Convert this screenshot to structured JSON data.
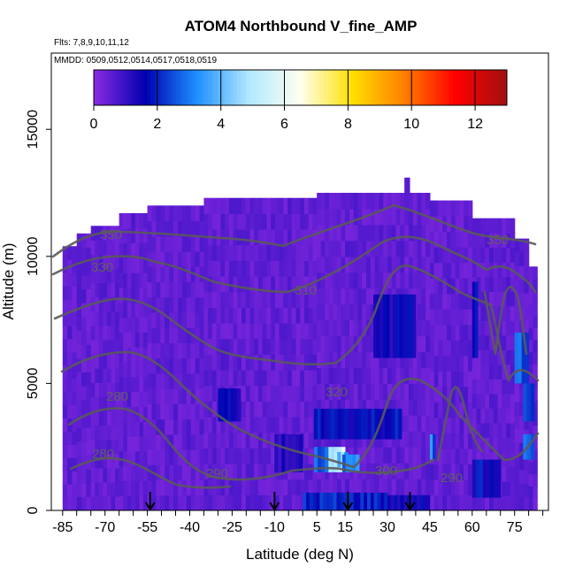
{
  "chart_data": {
    "type": "heatmap",
    "title": "ATOM4 Northbound V_fine_AMP",
    "flights_note": "Flts: 7,8,9,10,11,12",
    "dates_note": "MMDD: 0509,0512,0514,0517,0518,0519",
    "xlabel": "Latitude (deg N)",
    "ylabel": "Altitude (m)",
    "xlim": [
      -85,
      85
    ],
    "ylim": [
      0,
      18000
    ],
    "x_ticks": [
      -85,
      -70,
      -55,
      -40,
      -25,
      -10,
      5,
      15,
      30,
      45,
      60,
      75
    ],
    "y_ticks": [
      0,
      5000,
      10000,
      15000
    ],
    "colorbar": {
      "range": [
        0,
        13
      ],
      "ticks": [
        0,
        2,
        4,
        6,
        8,
        10,
        12
      ],
      "colors": [
        "#8b2be2",
        "#0000b0",
        "#1e90ff",
        "#b0e8ff",
        "#fffff0",
        "#ffe000",
        "#ff8000",
        "#ff0000",
        "#a01010"
      ]
    },
    "background_value": 0.5,
    "domain_columns": [
      {
        "lon": -85,
        "w": 5,
        "top": 10400
      },
      {
        "lon": -80,
        "w": 5,
        "top": 10900
      },
      {
        "lon": -75,
        "w": 10,
        "top": 11200
      },
      {
        "lon": -65,
        "w": 10,
        "top": 11700
      },
      {
        "lon": -55,
        "w": 20,
        "top": 12000
      },
      {
        "lon": -35,
        "w": 40,
        "top": 12300
      },
      {
        "lon": 5,
        "w": 10,
        "top": 12500
      },
      {
        "lon": 15,
        "w": 30,
        "top": 12500
      },
      {
        "lon": 45,
        "w": 15,
        "top": 12200
      },
      {
        "lon": 60,
        "w": 15,
        "top": 11500
      },
      {
        "lon": 75,
        "w": 5,
        "top": 10700
      },
      {
        "lon": 80,
        "w": 3,
        "top": 9600
      }
    ],
    "enhanced_patches": [
      {
        "x": [
          9,
          15
        ],
        "y": [
          1500,
          2500
        ],
        "v": 5.0
      },
      {
        "x": [
          11,
          16
        ],
        "y": [
          1700,
          2300
        ],
        "v": 4.2
      },
      {
        "x": [
          4,
          9
        ],
        "y": [
          1500,
          2500
        ],
        "v": 2.5
      },
      {
        "x": [
          14,
          20
        ],
        "y": [
          1500,
          2200
        ],
        "v": 3.2
      },
      {
        "x": [
          4,
          35
        ],
        "y": [
          2800,
          4000
        ],
        "v": 1.8
      },
      {
        "x": [
          0,
          30
        ],
        "y": [
          0,
          700
        ],
        "v": 2.0
      },
      {
        "x": [
          30,
          45
        ],
        "y": [
          0,
          600
        ],
        "v": 1.5
      },
      {
        "x": [
          -10,
          0
        ],
        "y": [
          1500,
          3000
        ],
        "v": 1.2
      },
      {
        "x": [
          -30,
          -22
        ],
        "y": [
          3500,
          4800
        ],
        "v": 1.5
      },
      {
        "x": [
          60,
          62
        ],
        "y": [
          6000,
          9000
        ],
        "v": 2.0
      },
      {
        "x": [
          75,
          80
        ],
        "y": [
          5000,
          7000
        ],
        "v": 2.6
      },
      {
        "x": [
          78,
          82
        ],
        "y": [
          2000,
          3000
        ],
        "v": 3.5
      },
      {
        "x": [
          78,
          82
        ],
        "y": [
          3500,
          5000
        ],
        "v": 2.2
      },
      {
        "x": [
          45,
          47
        ],
        "y": [
          2000,
          3000
        ],
        "v": 3.0
      },
      {
        "x": [
          60,
          70
        ],
        "y": [
          500,
          2000
        ],
        "v": 1.8
      },
      {
        "x": [
          25,
          40
        ],
        "y": [
          6000,
          8500
        ],
        "v": 1.5
      }
    ],
    "contour_labels": [
      "350",
      "330",
      "310",
      "320",
      "300",
      "290",
      "280"
    ],
    "arrows_lat": [
      -54,
      -10,
      16,
      38
    ]
  }
}
